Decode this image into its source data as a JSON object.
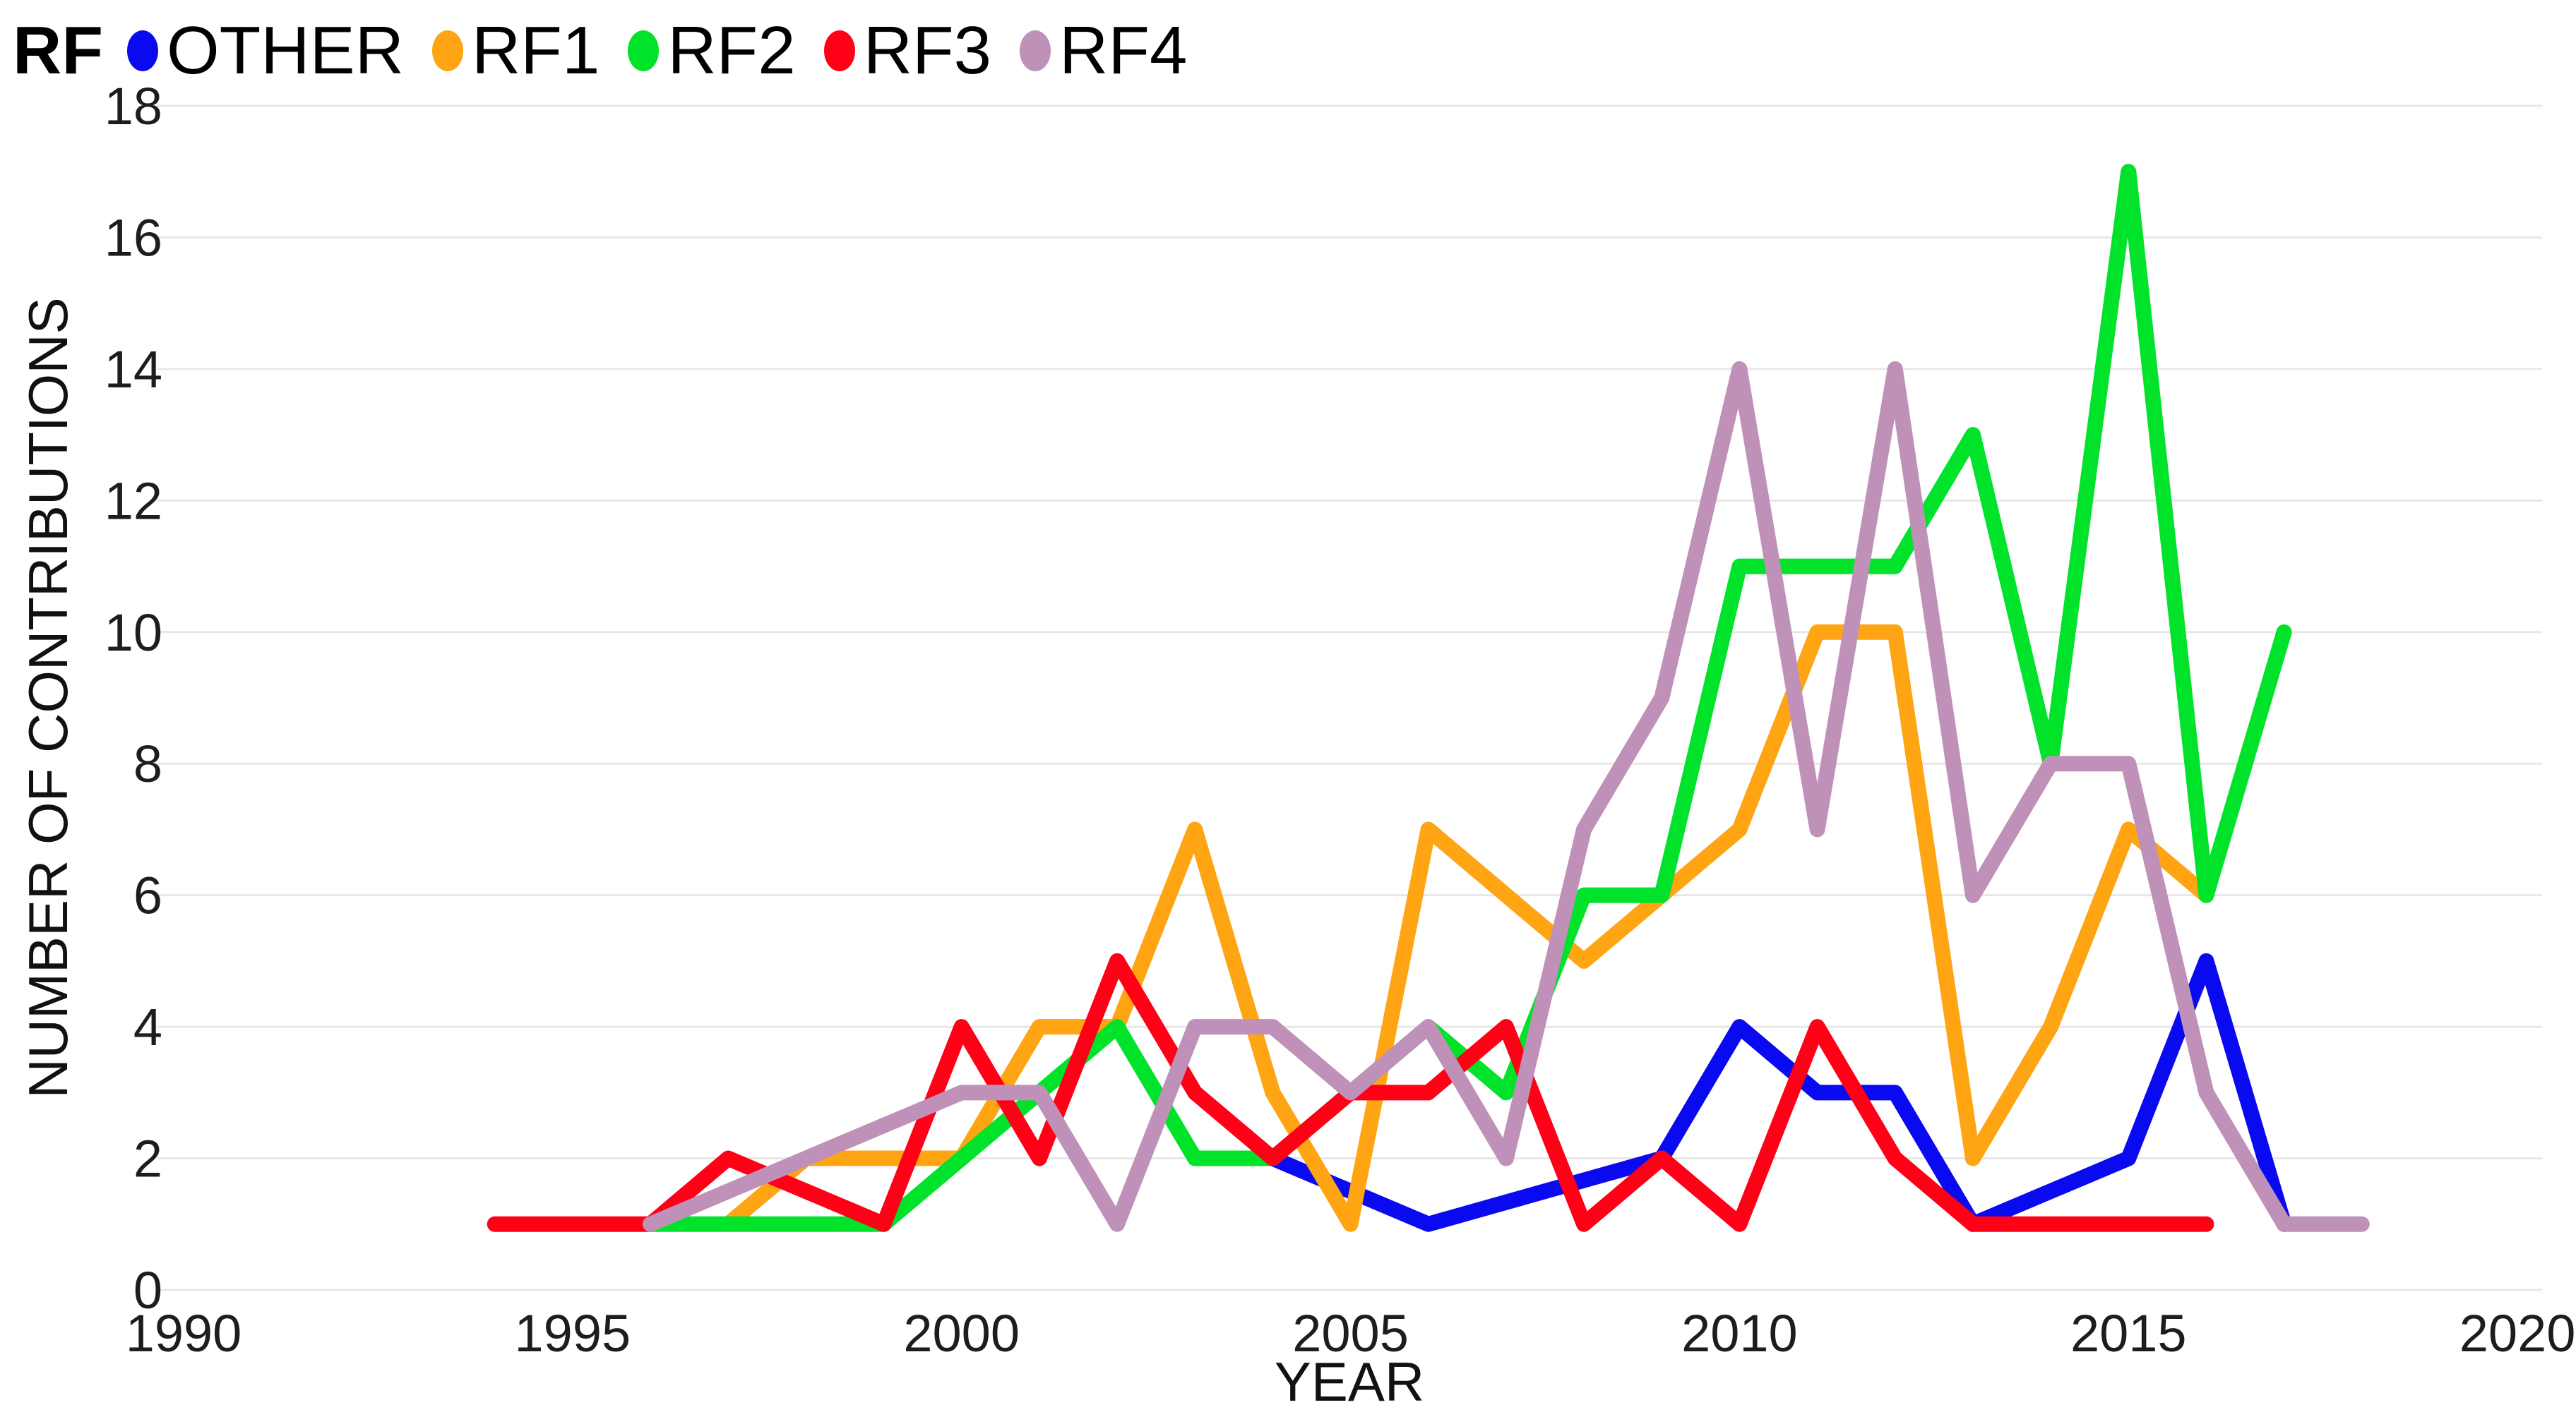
{
  "legend": {
    "title": "RF",
    "items": [
      {
        "label": "OTHER",
        "color": "#0A0AF0"
      },
      {
        "label": "RF1",
        "color": "#FFA413"
      },
      {
        "label": "RF2",
        "color": "#00E32A"
      },
      {
        "label": "RF3",
        "color": "#FF0016"
      },
      {
        "label": "RF4",
        "color": "#C091B8"
      }
    ]
  },
  "chart_data": {
    "type": "line",
    "title": "",
    "xlabel": "YEAR",
    "ylabel": "NUMBER OF CONTRIBUTIONS",
    "xlim": [
      1990,
      2020
    ],
    "ylim": [
      0,
      18
    ],
    "x_ticks": [
      1990,
      1995,
      2000,
      2005,
      2010,
      2015,
      2020
    ],
    "y_ticks": [
      0,
      2,
      4,
      6,
      8,
      10,
      12,
      14,
      16,
      18
    ],
    "grid": "horizontal",
    "legend_position": "top-left",
    "colors": {
      "grid": "#E7E7E7",
      "text": "#1d1d1d",
      "background": "#ffffff"
    },
    "series": [
      {
        "name": "OTHER",
        "color": "#0A0AF0",
        "points": [
          [
            2004,
            2
          ],
          [
            2006,
            1
          ],
          [
            2009,
            2
          ],
          [
            2010,
            4
          ],
          [
            2011,
            3
          ],
          [
            2012,
            3
          ],
          [
            2013,
            1
          ],
          [
            2015,
            2
          ],
          [
            2016,
            5
          ],
          [
            2017,
            1
          ]
        ]
      },
      {
        "name": "RF1",
        "color": "#FFA413",
        "points": [
          [
            1997,
            1
          ],
          [
            1998,
            2
          ],
          [
            1999,
            2
          ],
          [
            2000,
            2
          ],
          [
            2001,
            4
          ],
          [
            2002,
            4
          ],
          [
            2003,
            7
          ],
          [
            2004,
            3
          ],
          [
            2005,
            1
          ],
          [
            2006,
            7
          ],
          [
            2007,
            6
          ],
          [
            2008,
            5
          ],
          [
            2009,
            6
          ],
          [
            2010,
            7
          ],
          [
            2011,
            10
          ],
          [
            2012,
            10
          ],
          [
            2013,
            2
          ],
          [
            2014,
            4
          ],
          [
            2015,
            7
          ],
          [
            2016,
            6
          ]
        ]
      },
      {
        "name": "RF2",
        "color": "#00E32A",
        "points": [
          [
            1996,
            1
          ],
          [
            1997,
            1
          ],
          [
            1998,
            1
          ],
          [
            1999,
            1
          ],
          [
            2000,
            2
          ],
          [
            2001,
            3
          ],
          [
            2002,
            4
          ],
          [
            2003,
            2
          ],
          [
            2004,
            2
          ],
          [
            2005,
            3
          ],
          [
            2006,
            4
          ],
          [
            2007,
            3
          ],
          [
            2008,
            6
          ],
          [
            2009,
            6
          ],
          [
            2010,
            11
          ],
          [
            2011,
            11
          ],
          [
            2012,
            11
          ],
          [
            2013,
            13
          ],
          [
            2014,
            8
          ],
          [
            2015,
            17
          ],
          [
            2016,
            6
          ],
          [
            2017,
            10
          ]
        ]
      },
      {
        "name": "RF3",
        "color": "#FF0016",
        "points": [
          [
            1994,
            1
          ],
          [
            1995,
            1
          ],
          [
            1996,
            1
          ],
          [
            1997,
            2
          ],
          [
            1999,
            1
          ],
          [
            2000,
            4
          ],
          [
            2001,
            2
          ],
          [
            2002,
            5
          ],
          [
            2003,
            3
          ],
          [
            2004,
            2
          ],
          [
            2005,
            3
          ],
          [
            2006,
            3
          ],
          [
            2007,
            4
          ],
          [
            2008,
            1
          ],
          [
            2009,
            2
          ],
          [
            2010,
            1
          ],
          [
            2011,
            4
          ],
          [
            2012,
            2
          ],
          [
            2013,
            1
          ],
          [
            2014,
            1
          ],
          [
            2015,
            1
          ],
          [
            2016,
            1
          ]
        ]
      },
      {
        "name": "RF4",
        "color": "#C091B8",
        "points": [
          [
            1996,
            1
          ],
          [
            2000,
            3
          ],
          [
            2001,
            3
          ],
          [
            2002,
            1
          ],
          [
            2003,
            4
          ],
          [
            2004,
            4
          ],
          [
            2005,
            3
          ],
          [
            2006,
            4
          ],
          [
            2007,
            2
          ],
          [
            2008,
            7
          ],
          [
            2009,
            9
          ],
          [
            2010,
            14
          ],
          [
            2011,
            7
          ],
          [
            2012,
            14
          ],
          [
            2013,
            6
          ],
          [
            2014,
            8
          ],
          [
            2015,
            8
          ],
          [
            2016,
            3
          ],
          [
            2017,
            1
          ],
          [
            2018,
            1
          ]
        ]
      }
    ]
  }
}
